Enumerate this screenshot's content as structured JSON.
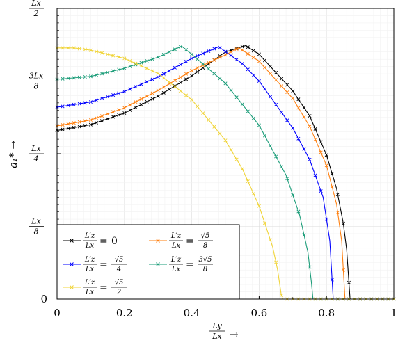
{
  "chart_data": {
    "type": "line",
    "xlabel": {
      "num": "L_y",
      "den": "L_x",
      "arrow": "→"
    },
    "ylabel": {
      "text": "a₁*",
      "arrow": "→"
    },
    "xlim": [
      0,
      1
    ],
    "ylim": [
      0,
      0.5
    ],
    "xticks": [
      {
        "value": 0,
        "label": "0"
      },
      {
        "value": 0.2,
        "label": "0.2"
      },
      {
        "value": 0.4,
        "label": "0.4"
      },
      {
        "value": 0.6,
        "label": "0.6"
      },
      {
        "value": 0.8,
        "label": "0.8"
      },
      {
        "value": 1,
        "label": "1"
      }
    ],
    "yticks": [
      {
        "value": 0,
        "label": "0"
      },
      {
        "value": 0.125,
        "num": "L_x",
        "den": "8"
      },
      {
        "value": 0.25,
        "num": "L_x",
        "den": "4"
      },
      {
        "value": 0.375,
        "num": "3L_x",
        "den": "8"
      },
      {
        "value": 0.5,
        "num": "L_x",
        "den": "2"
      }
    ],
    "grid": true,
    "legend_position": "bottom-left",
    "series": [
      {
        "name": "L'_z/L_x = 0",
        "lhs_num": "L′z",
        "lhs_den": "Lx",
        "rhs": "0",
        "color": "#000000",
        "x": [
          0,
          0.1,
          0.2,
          0.3,
          0.4,
          0.5,
          0.56,
          0.6,
          0.7,
          0.75,
          0.8,
          0.83,
          0.85,
          0.86,
          0.87,
          0.9,
          1.0
        ],
        "y": [
          0.29,
          0.3,
          0.32,
          0.349,
          0.384,
          0.425,
          0.436,
          0.421,
          0.358,
          0.315,
          0.248,
          0.19,
          0.13,
          0.085,
          0.0,
          0.0,
          0.0
        ]
      },
      {
        "name": "L'_z/L_x = √5/8",
        "lhs_num": "L′z",
        "lhs_den": "Lx",
        "rhs_num": "√5",
        "rhs_den": "8",
        "color": "#ff7f0e",
        "x": [
          0,
          0.1,
          0.2,
          0.3,
          0.4,
          0.5,
          0.54,
          0.6,
          0.7,
          0.75,
          0.8,
          0.83,
          0.845,
          0.855,
          0.9,
          1.0
        ],
        "y": [
          0.298,
          0.308,
          0.329,
          0.359,
          0.393,
          0.42,
          0.432,
          0.409,
          0.345,
          0.297,
          0.23,
          0.163,
          0.1,
          0.0,
          0.0,
          0.0
        ]
      },
      {
        "name": "L'_z/L_x = √5/4",
        "lhs_num": "L′z",
        "lhs_den": "Lx",
        "rhs_num": "√5",
        "rhs_den": "4",
        "color": "#0000ff",
        "x": [
          0,
          0.1,
          0.2,
          0.3,
          0.4,
          0.48,
          0.55,
          0.6,
          0.7,
          0.75,
          0.79,
          0.81,
          0.82,
          0.9,
          1.0
        ],
        "y": [
          0.33,
          0.339,
          0.357,
          0.382,
          0.414,
          0.434,
          0.405,
          0.375,
          0.294,
          0.24,
          0.175,
          0.1,
          0.0,
          0.0,
          0.0
        ]
      },
      {
        "name": "L'_z/L_x = 3√5/8",
        "lhs_num": "L′z",
        "lhs_den": "Lx",
        "rhs_num": "3√5",
        "rhs_den": "8",
        "color": "#1a9c78",
        "x": [
          0,
          0.1,
          0.2,
          0.3,
          0.37,
          0.4,
          0.5,
          0.6,
          0.68,
          0.72,
          0.745,
          0.755,
          0.76,
          0.9,
          1.0
        ],
        "y": [
          0.378,
          0.383,
          0.397,
          0.416,
          0.435,
          0.421,
          0.371,
          0.299,
          0.213,
          0.145,
          0.08,
          0.03,
          0.0,
          0.0,
          0.0
        ]
      },
      {
        "name": "L'_z/L_x = √5/2",
        "lhs_num": "L′z",
        "lhs_den": "Lx",
        "rhs_num": "√5",
        "rhs_den": "2",
        "color": "#f0d438",
        "x": [
          0,
          0.05,
          0.1,
          0.2,
          0.3,
          0.4,
          0.5,
          0.55,
          0.6,
          0.64,
          0.655,
          0.665,
          0.67,
          0.8,
          1.0
        ],
        "y": [
          0.432,
          0.432,
          0.428,
          0.414,
          0.388,
          0.343,
          0.273,
          0.224,
          0.16,
          0.09,
          0.05,
          0.01,
          0.0,
          0.0,
          0.0
        ]
      }
    ]
  }
}
